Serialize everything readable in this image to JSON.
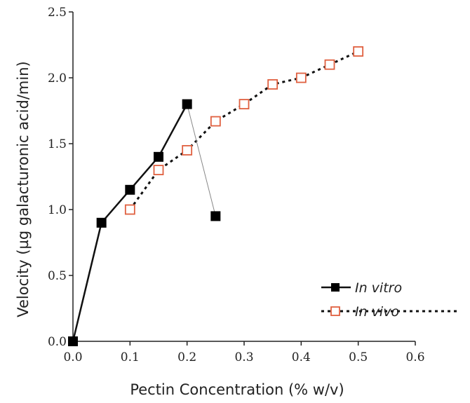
{
  "chart_data": {
    "type": "line",
    "xlabel": "Pectin Concentration (% w/v)",
    "ylabel": "Velocity (µg galacturonic acid/min)",
    "xlim": [
      0.0,
      0.6
    ],
    "ylim": [
      0.0,
      2.5
    ],
    "x_ticks": [
      "0.0",
      "0.1",
      "0.2",
      "0.3",
      "0.4",
      "0.5",
      "0.6"
    ],
    "y_ticks": [
      "0.0",
      "0.5",
      "1.0",
      "1.5",
      "2.0",
      "2.5"
    ],
    "grid": false,
    "legend_position": "bottom-right",
    "series": [
      {
        "name": "In vitro",
        "marker": "filled-square",
        "line": "solid",
        "color": "#000000",
        "points": [
          {
            "x": 0.0,
            "y": 0.0
          },
          {
            "x": 0.05,
            "y": 0.9
          },
          {
            "x": 0.1,
            "y": 1.15
          },
          {
            "x": 0.15,
            "y": 1.4
          },
          {
            "x": 0.2,
            "y": 1.8
          },
          {
            "x": 0.25,
            "y": 0.95
          }
        ]
      },
      {
        "name": "In vivo",
        "marker": "open-square",
        "line": "dotted",
        "color": "#e06040",
        "points": [
          {
            "x": 0.1,
            "y": 1.0
          },
          {
            "x": 0.15,
            "y": 1.3
          },
          {
            "x": 0.2,
            "y": 1.45
          },
          {
            "x": 0.25,
            "y": 1.67
          },
          {
            "x": 0.3,
            "y": 1.8
          },
          {
            "x": 0.35,
            "y": 1.95
          },
          {
            "x": 0.4,
            "y": 2.0
          },
          {
            "x": 0.45,
            "y": 2.1
          },
          {
            "x": 0.5,
            "y": 2.2
          }
        ]
      }
    ]
  }
}
